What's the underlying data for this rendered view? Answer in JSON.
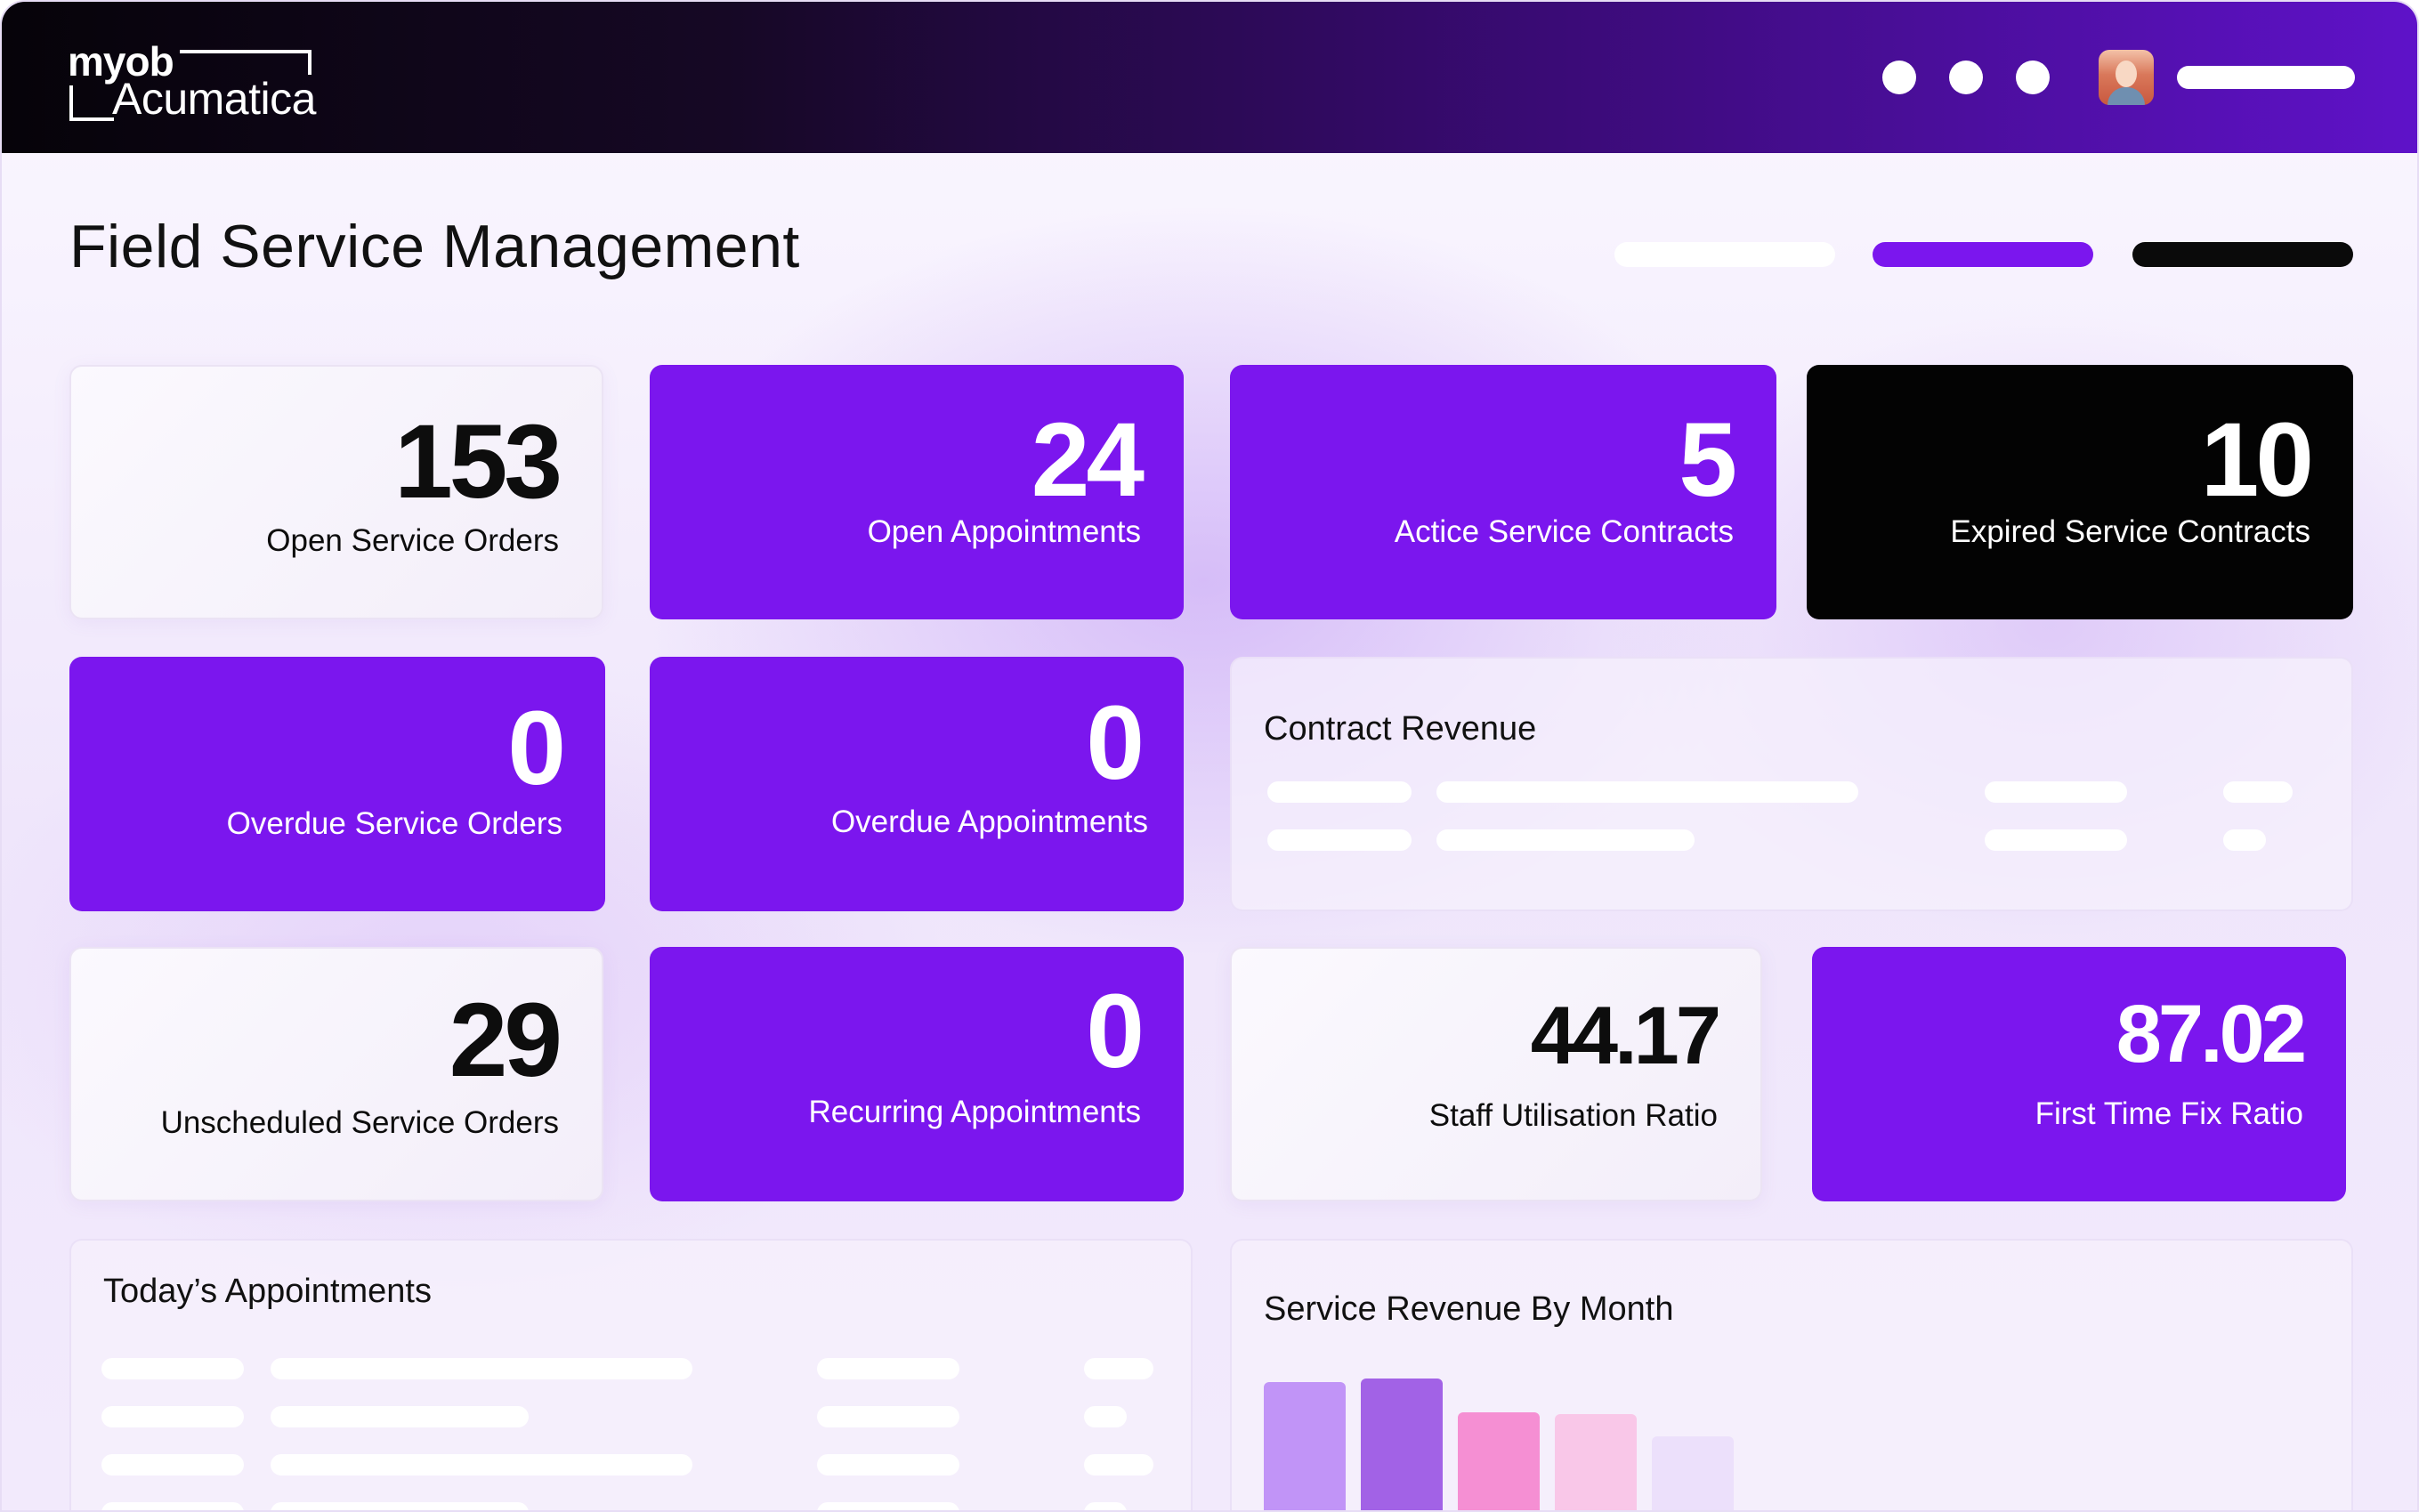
{
  "app": {
    "brand_top": "myob",
    "brand_bottom": "Acumatica",
    "header_dots": 3
  },
  "page": {
    "title": "Field Service Management"
  },
  "tabs": [
    {
      "state": "inactive",
      "color": "#ffffff"
    },
    {
      "state": "active",
      "color": "#7b16ee"
    },
    {
      "state": "dark",
      "color": "#0a0a0a"
    }
  ],
  "kpis": [
    {
      "value": "153",
      "label": "Open Service Orders",
      "style": "white"
    },
    {
      "value": "24",
      "label": "Open Appointments",
      "style": "purple"
    },
    {
      "value": "5",
      "label": "Actice Service Contracts",
      "style": "purple"
    },
    {
      "value": "10",
      "label": "Expired Service Contracts",
      "style": "black"
    },
    {
      "value": "0",
      "label": "Overdue Service Orders",
      "style": "purple"
    },
    {
      "value": "0",
      "label": "Overdue Appointments",
      "style": "purple"
    },
    {
      "value": "29",
      "label": "Unscheduled Service Orders",
      "style": "white"
    },
    {
      "value": "0",
      "label": "Recurring Appointments",
      "style": "purple"
    },
    {
      "value": "44.17",
      "label": "Staff Utilisation Ratio",
      "style": "white"
    },
    {
      "value": "87.02",
      "label": "First Time Fix Ratio",
      "style": "purple"
    }
  ],
  "panels": {
    "contract_revenue": {
      "title": "Contract Revenue"
    },
    "todays_appointments": {
      "title": "Today’s Appointments"
    },
    "service_revenue": {
      "title": "Service Revenue By Month"
    }
  },
  "colors": {
    "accent": "#7b16ee",
    "dark": "#030303",
    "bar_colors": [
      "#c194f7",
      "#a262e6",
      "#f58fd3",
      "#f9c7e8",
      "#ece0fb"
    ]
  },
  "chart_data": {
    "type": "bar",
    "title": "Service Revenue By Month",
    "categories": [
      "",
      "",
      "",
      "",
      ""
    ],
    "values": [
      0.92,
      0.94,
      0.74,
      0.73,
      0.6
    ],
    "ylim": [
      0,
      1
    ]
  }
}
